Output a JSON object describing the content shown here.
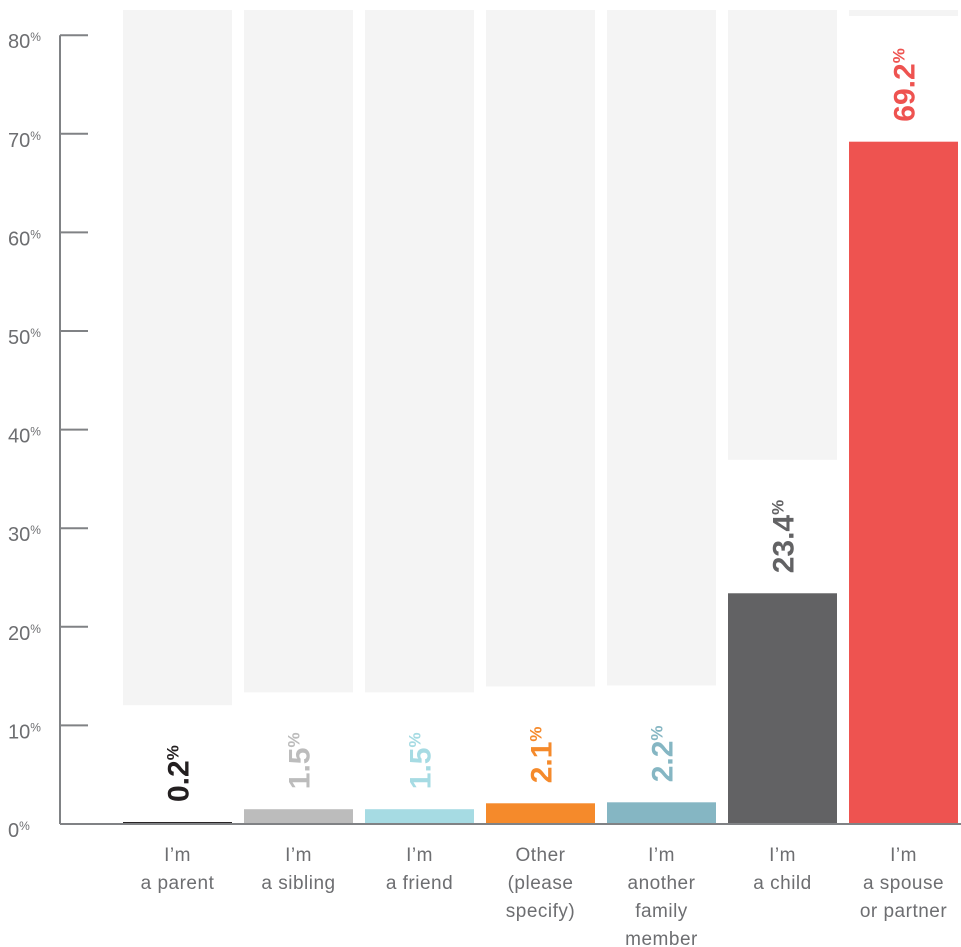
{
  "chart_data": {
    "type": "bar",
    "ylim": [
      0,
      80
    ],
    "yticks": [
      0,
      10,
      20,
      30,
      40,
      50,
      60,
      70,
      80
    ],
    "ytick_suffix": "%",
    "value_suffix": "%",
    "categories": [
      [
        "I’m",
        "a parent"
      ],
      [
        "I’m",
        "a sibling"
      ],
      [
        "I’m",
        "a friend"
      ],
      [
        "Other",
        "(please",
        "specify)"
      ],
      [
        "I’m",
        "another",
        "family",
        "member"
      ],
      [
        "I’m",
        "a child"
      ],
      [
        "I’m",
        "a spouse",
        "or partner"
      ]
    ],
    "values": [
      0.2,
      1.5,
      1.5,
      2.1,
      2.2,
      23.4,
      69.2
    ],
    "value_labels": [
      "0.2",
      "1.5",
      "1.5",
      "2.1",
      "2.2",
      "23.4",
      "69.2"
    ],
    "colors": [
      "#231f20",
      "#bcbcbc",
      "#a6dbe3",
      "#f58a2b",
      "#85b6c3",
      "#626264",
      "#ee5350"
    ],
    "value_label_colors": [
      "#231f20",
      "#bcbcbc",
      "#a6dbe3",
      "#f58a2b",
      "#85b6c3",
      "#626264",
      "#ee5350"
    ],
    "background_bar_color": "#f4f4f4",
    "axis_color": "#808285",
    "grid": false,
    "title": "",
    "xlabel": "",
    "ylabel": ""
  }
}
